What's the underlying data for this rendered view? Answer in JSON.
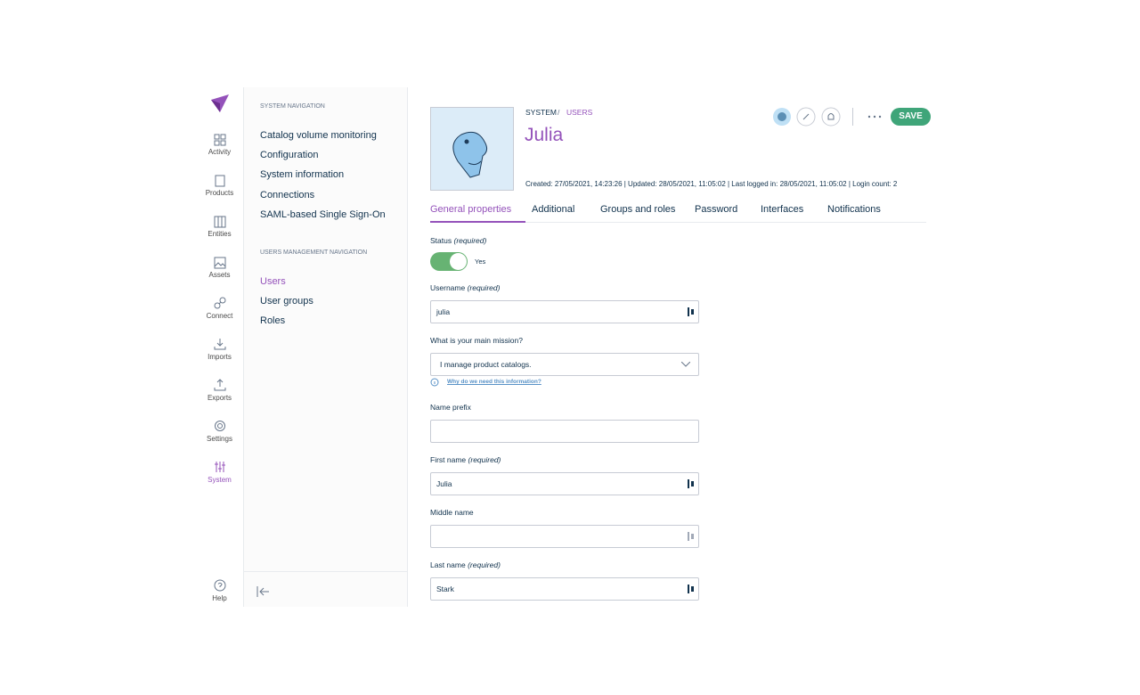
{
  "main_nav": [
    "Activity",
    "Products",
    "Entities",
    "Assets",
    "Connect",
    "Imports",
    "Exports",
    "Settings",
    "System"
  ],
  "help": "Help",
  "system_navigation": {
    "title": "SYSTEM NAVIGATION",
    "items": [
      "Catalog volume monitoring",
      "Configuration",
      "System information",
      "Connections",
      "SAML-based Single Sign-On"
    ]
  },
  "users_navigation": {
    "title": "USERS MANAGEMENT NAVIGATION",
    "items": [
      "Users",
      "User groups",
      "Roles"
    ]
  },
  "breadcrumb": [
    "SYSTEM",
    "USERS"
  ],
  "user": {
    "name": "Julia",
    "meta": "Created: 27/05/2021, 14:23:26 | Updated: 28/05/2021, 11:05:02 | Last logged in: 28/05/2021, 11:05:02 | Login count: 2"
  },
  "save": "SAVE",
  "tabs": [
    "General properties",
    "Additional",
    "Groups and roles",
    "Password",
    "Interfaces",
    "Notifications"
  ],
  "form": {
    "status": {
      "label": "Status",
      "required": "(required)",
      "value": "Yes"
    },
    "username": {
      "label": "Username",
      "required": "(required)",
      "value": "julia"
    },
    "mission": {
      "label": "What is your main mission?",
      "value": "I manage product catalogs.",
      "help": "Why do we need this information?"
    },
    "name_prefix": {
      "label": "Name prefix"
    },
    "first_name": {
      "label": "First name",
      "required": "(required)",
      "value": "Julia"
    },
    "middle_name": {
      "label": "Middle name"
    },
    "last_name": {
      "label": "Last name",
      "required": "(required)",
      "value": "Stark"
    }
  }
}
